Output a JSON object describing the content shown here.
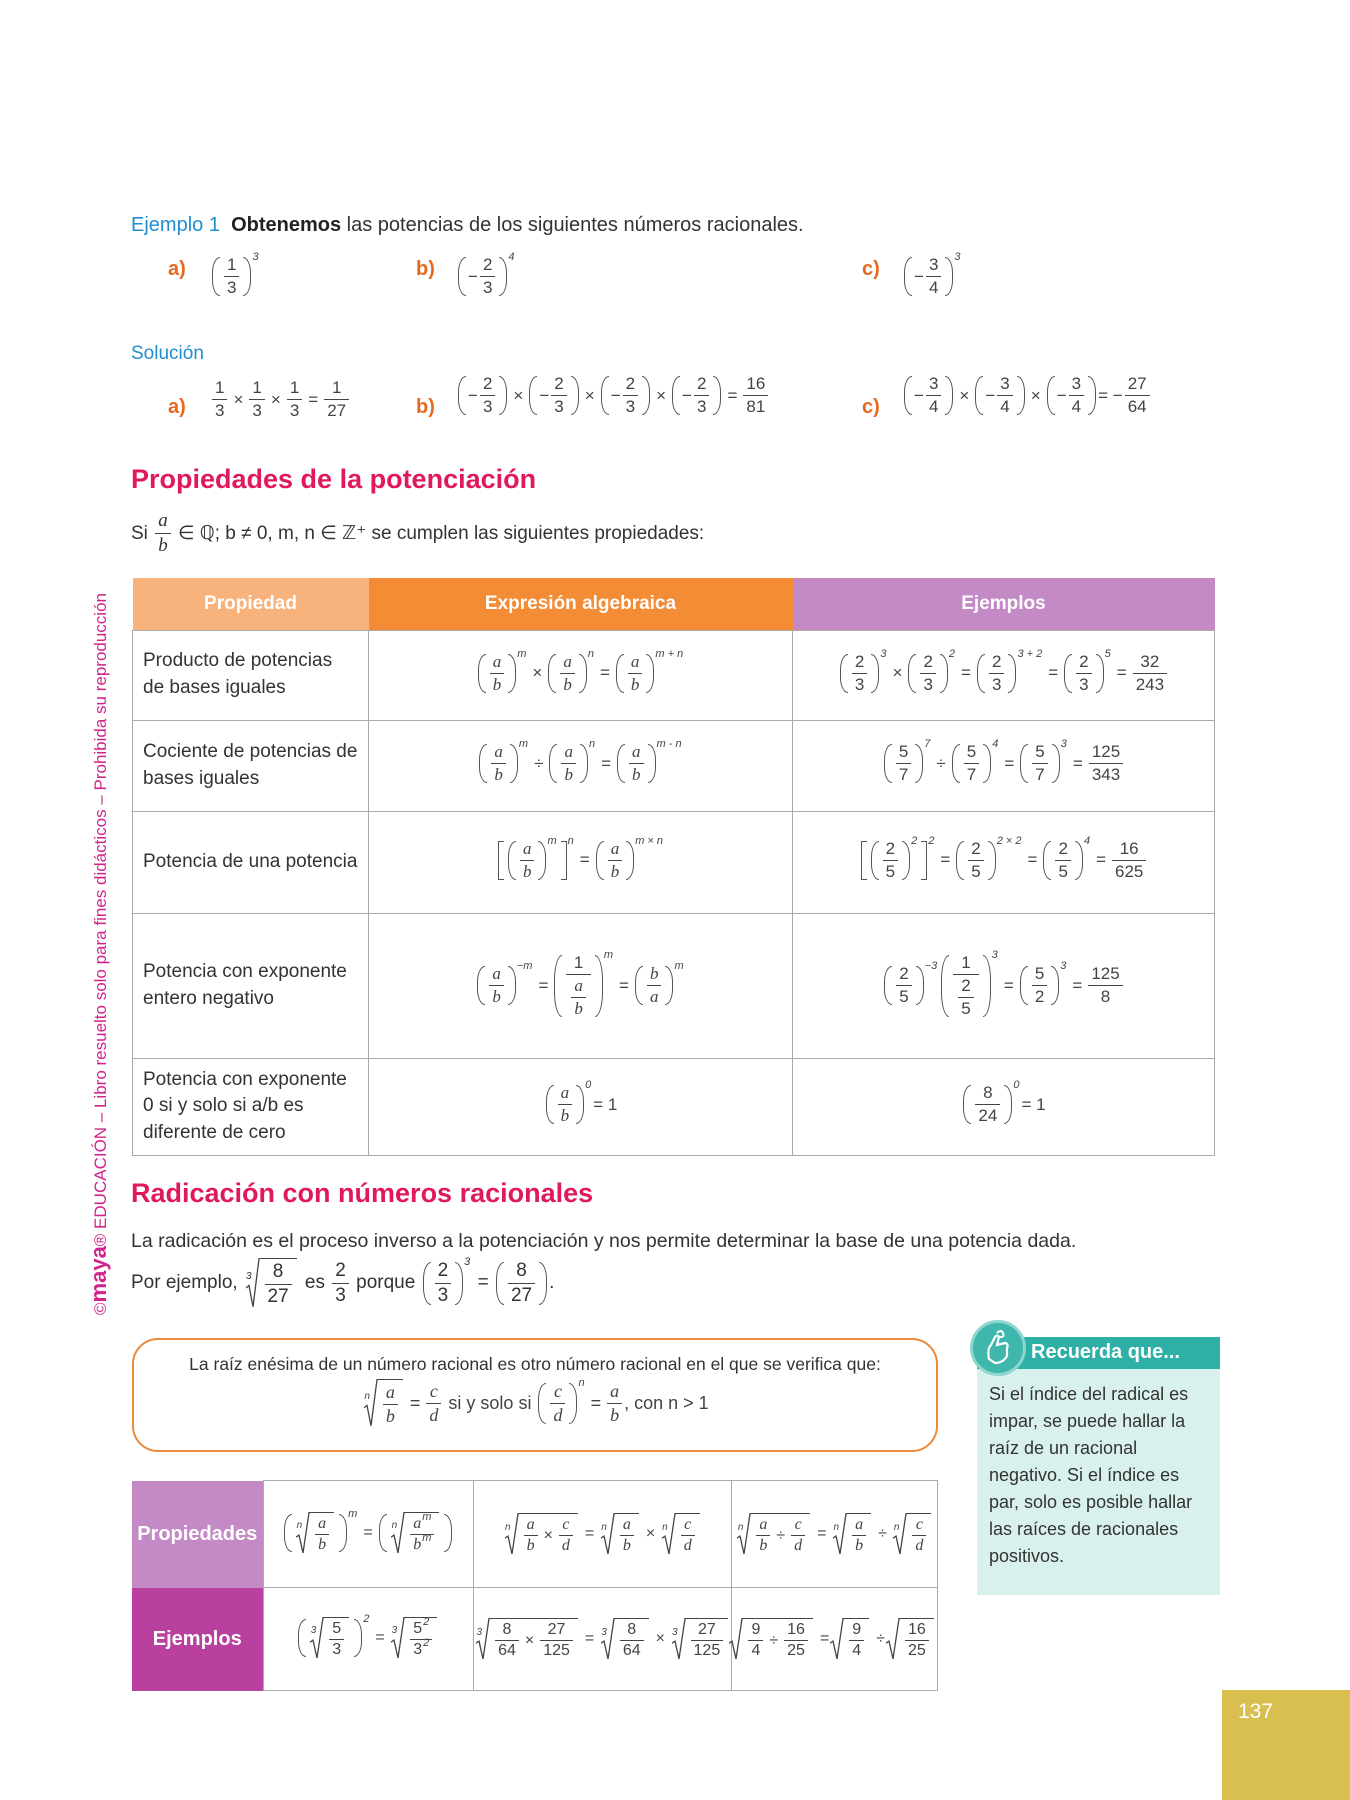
{
  "side_note": {
    "brand": "maya",
    "copyright": "©",
    "text": "® EDUCACIÓN – Libro resuelto solo para fines didácticos – Prohibida su reproducción"
  },
  "example": {
    "label": "Ejemplo 1",
    "bold": "Obtenemos",
    "rest": " las potencias de los siguientes números racionales.",
    "items": [
      {
        "label": "a)",
        "expr": [
          {
            "p": {
              "f": [
                "1",
                "3"
              ]
            },
            "e": "3"
          }
        ]
      },
      {
        "label": "b)",
        "expr": [
          {
            "p": [
              "−",
              {
                "f": [
                  "2",
                  "3"
                ]
              }
            ],
            "e": "4"
          }
        ]
      },
      {
        "label": "c)",
        "expr": [
          {
            "p": [
              "−",
              {
                "f": [
                  "3",
                  "4"
                ]
              }
            ],
            "e": "3"
          }
        ]
      }
    ],
    "solution_label": "Solución",
    "solutions": [
      {
        "label": "a)",
        "expr": [
          {
            "f": [
              "1",
              "3"
            ]
          },
          "×",
          {
            "f": [
              "1",
              "3"
            ]
          },
          "×",
          {
            "f": [
              "1",
              "3"
            ]
          },
          "=",
          {
            "f": [
              "1",
              "27"
            ]
          }
        ]
      },
      {
        "label": "b)",
        "expr": [
          {
            "p": [
              "−",
              {
                "f": [
                  "2",
                  "3"
                ]
              }
            ]
          },
          "×",
          {
            "p": [
              "−",
              {
                "f": [
                  "2",
                  "3"
                ]
              }
            ]
          },
          "×",
          {
            "p": [
              "−",
              {
                "f": [
                  "2",
                  "3"
                ]
              }
            ]
          },
          "×",
          {
            "p": [
              "−",
              {
                "f": [
                  "2",
                  "3"
                ]
              }
            ]
          },
          "=",
          {
            "f": [
              "16",
              "81"
            ]
          }
        ]
      },
      {
        "label": "c)",
        "expr": [
          {
            "p": [
              "−",
              {
                "f": [
                  "3",
                  "4"
                ]
              }
            ]
          },
          "×",
          {
            "p": [
              "−",
              {
                "f": [
                  "3",
                  "4"
                ]
              }
            ]
          },
          "×",
          {
            "p": [
              "−",
              {
                "f": [
                  "3",
                  "4"
                ]
              }
            ]
          },
          "= −",
          {
            "f": [
              "27",
              "64"
            ]
          }
        ]
      }
    ]
  },
  "powers": {
    "title": "Propiedades de la potenciación",
    "intro": [
      "Si ",
      {
        "f": [
          "a",
          "b"
        ]
      },
      " ∈ ℚ; b ≠ 0, m, n ∈ ℤ⁺ se cumplen las siguientes propiedades:"
    ],
    "headers": [
      "Propiedad",
      "Expresión algebraica",
      "Ejemplos"
    ],
    "header_colors": [
      "#f8b27c",
      "#f48b35",
      "#c48ac6"
    ],
    "rows": [
      {
        "name": "Producto de potencias de bases iguales",
        "expr": [
          {
            "p": {
              "f": [
                "a",
                "b"
              ]
            },
            "e": "m"
          },
          "×",
          {
            "p": {
              "f": [
                "a",
                "b"
              ]
            },
            "e": "n"
          },
          "=",
          {
            "p": {
              "f": [
                "a",
                "b"
              ]
            },
            "e": "m + n"
          }
        ],
        "example": [
          {
            "p": {
              "f": [
                "2",
                "3"
              ]
            },
            "e": "3"
          },
          "×",
          {
            "p": {
              "f": [
                "2",
                "3"
              ]
            },
            "e": "2"
          },
          "=",
          {
            "p": {
              "f": [
                "2",
                "3"
              ]
            },
            "e": "3 + 2"
          },
          "=",
          {
            "p": {
              "f": [
                "2",
                "3"
              ]
            },
            "e": "5"
          },
          "=",
          {
            "f": [
              "32",
              "243"
            ]
          }
        ]
      },
      {
        "name": "Cociente de potencias de bases iguales",
        "expr": [
          {
            "p": {
              "f": [
                "a",
                "b"
              ]
            },
            "e": "m"
          },
          "÷",
          {
            "p": {
              "f": [
                "a",
                "b"
              ]
            },
            "e": "n"
          },
          "=",
          {
            "p": {
              "f": [
                "a",
                "b"
              ]
            },
            "e": "m - n"
          }
        ],
        "example": [
          {
            "p": {
              "f": [
                "5",
                "7"
              ]
            },
            "e": "7"
          },
          "÷",
          {
            "p": {
              "f": [
                "5",
                "7"
              ]
            },
            "e": "4"
          },
          "=",
          {
            "p": {
              "f": [
                "5",
                "7"
              ]
            },
            "e": "3"
          },
          "=",
          {
            "f": [
              "125",
              "343"
            ]
          }
        ]
      },
      {
        "name": "Potencia de una potencia",
        "expr": [
          {
            "k": {
              "p": {
                "f": [
                  "a",
                  "b"
                ]
              },
              "e": "m"
            },
            "e": "n"
          },
          "=",
          {
            "p": {
              "f": [
                "a",
                "b"
              ]
            },
            "e": "m × n"
          }
        ],
        "example": [
          {
            "k": {
              "p": {
                "f": [
                  "2",
                  "5"
                ]
              },
              "e": "2"
            },
            "e": "2"
          },
          "=",
          {
            "p": {
              "f": [
                "2",
                "5"
              ]
            },
            "e": "2 × 2"
          },
          "=",
          {
            "p": {
              "f": [
                "2",
                "5"
              ]
            },
            "e": "4"
          },
          "=",
          {
            "f": [
              "16",
              "625"
            ]
          }
        ]
      },
      {
        "name": "Potencia con exponente entero negativo",
        "expr": [
          {
            "p": {
              "f": [
                "a",
                "b"
              ]
            },
            "e": "−m"
          },
          "=",
          {
            "p": {
              "f": [
                "1",
                {
                  "f": [
                    "a",
                    "b"
                  ]
                }
              ]
            },
            "e": "m"
          },
          "=",
          {
            "p": {
              "f": [
                "b",
                "a"
              ]
            },
            "e": "m"
          }
        ],
        "example": [
          {
            "p": {
              "f": [
                "2",
                "5"
              ]
            },
            "e": "−3"
          },
          {
            "p": {
              "f": [
                "1",
                {
                  "f": [
                    "2",
                    "5"
                  ]
                }
              ]
            },
            "e": "3"
          },
          "=",
          {
            "p": {
              "f": [
                "5",
                "2"
              ]
            },
            "e": "3"
          },
          "=",
          {
            "f": [
              "125",
              "8"
            ]
          }
        ]
      },
      {
        "name": "Potencia con exponente 0 si y solo si a/b es diferente de cero",
        "expr": [
          {
            "p": {
              "f": [
                "a",
                "b"
              ]
            },
            "e": "0"
          },
          "= 1"
        ],
        "example": [
          {
            "p": {
              "f": [
                "8",
                "24"
              ]
            },
            "e": "0"
          },
          "= 1"
        ]
      }
    ]
  },
  "roots": {
    "title": "Radicación con números racionales",
    "para": "La radicación es el proceso inverso a la potenciación y nos permite determinar la base de una potencia dada.",
    "example": [
      "Por ejemplo, ",
      {
        "r": {
          "f": [
            "8",
            "27"
          ]
        },
        "i": "3"
      },
      " es ",
      {
        "f": [
          "2",
          "3"
        ]
      },
      " porque ",
      {
        "p": {
          "f": [
            "2",
            "3"
          ]
        },
        "e": "3"
      },
      " = ",
      {
        "p": {
          "f": [
            "8",
            "27"
          ]
        }
      },
      "."
    ],
    "box_text": "La raíz enésima de un número racional es otro número racional en el que se verifica que:",
    "box_formula": [
      {
        "r": {
          "f": [
            "a",
            "b"
          ]
        },
        "i": "n"
      },
      "=",
      {
        "f": [
          "c",
          "d"
        ]
      },
      " si y solo si ",
      {
        "p": {
          "f": [
            "c",
            "d"
          ]
        },
        "e": "n"
      },
      "=",
      {
        "f": [
          "a",
          "b"
        ]
      },
      ", con n > 1"
    ],
    "table": {
      "row_labels": [
        "Propiedades",
        "Ejemplos"
      ],
      "row_colors": [
        "#c48ac6",
        "#b9409f"
      ],
      "properties": [
        [
          {
            "p": {
              "r": {
                "f": [
                  "a",
                  "b"
                ]
              },
              "i": "n"
            },
            "e": "m"
          },
          "=",
          {
            "p": {
              "r": {
                "f": [
                  {
                    "t": "a",
                    "e": "m"
                  },
                  {
                    "t": "b",
                    "e": "m"
                  }
                ]
              },
              "i": "n"
            }
          }
        ],
        [
          {
            "r": [
              {
                "f": [
                  "a",
                  "b"
                ]
              },
              "×",
              {
                "f": [
                  "c",
                  "d"
                ]
              }
            ],
            "i": "n"
          },
          "=",
          {
            "r": {
              "f": [
                "a",
                "b"
              ]
            },
            "i": "n"
          },
          "×",
          {
            "r": {
              "f": [
                "c",
                "d"
              ]
            },
            "i": "n"
          }
        ],
        [
          {
            "r": [
              {
                "f": [
                  "a",
                  "b"
                ]
              },
              "÷",
              {
                "f": [
                  "c",
                  "d"
                ]
              }
            ],
            "i": "n"
          },
          "=",
          {
            "r": {
              "f": [
                "a",
                "b"
              ]
            },
            "i": "n"
          },
          "÷",
          {
            "r": {
              "f": [
                "c",
                "d"
              ]
            },
            "i": "n"
          }
        ]
      ],
      "examples": [
        [
          {
            "p": {
              "r": {
                "f": [
                  "5",
                  "3"
                ]
              },
              "i": "3"
            },
            "e": "2"
          },
          "=",
          {
            "r": {
              "f": [
                {
                  "t": "5",
                  "e": "2"
                },
                {
                  "t": "3",
                  "e": "2"
                }
              ]
            },
            "i": "3"
          }
        ],
        [
          {
            "r": [
              {
                "f": [
                  "8",
                  "64"
                ]
              },
              "×",
              {
                "f": [
                  "27",
                  "125"
                ]
              }
            ],
            "i": "3"
          },
          "=",
          {
            "r": {
              "f": [
                "8",
                "64"
              ]
            },
            "i": "3"
          },
          "×",
          {
            "r": {
              "f": [
                "27",
                "125"
              ]
            },
            "i": "3"
          }
        ],
        [
          {
            "r": [
              {
                "f": [
                  "9",
                  "4"
                ]
              },
              "÷",
              {
                "f": [
                  "16",
                  "25"
                ]
              }
            ]
          },
          "=",
          {
            "r": {
              "f": [
                "9",
                "4"
              ]
            }
          },
          "÷",
          {
            "r": {
              "f": [
                "16",
                "25"
              ]
            }
          }
        ]
      ]
    }
  },
  "reminder": {
    "title": "Recuerda que...",
    "icon": "hand-finger-string-icon",
    "text": "Si el índice del radical es impar, se puede hallar la raíz de un racional negativo. Si el índice es par, solo es posible hallar las raíces de racionales positivos."
  },
  "page_number": "137"
}
